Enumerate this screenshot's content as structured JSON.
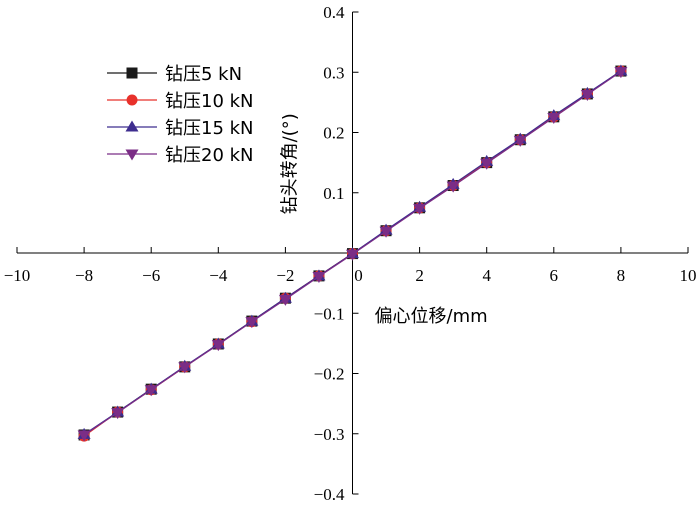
{
  "chart_data": {
    "type": "line",
    "xlabel": "偏心位移/mm",
    "ylabel": "钻头转角/(°)",
    "xlim": [
      -10,
      10
    ],
    "ylim": [
      -0.4,
      0.4
    ],
    "xticks": [
      -10,
      -8,
      -6,
      -4,
      -2,
      0,
      2,
      4,
      6,
      8,
      10
    ],
    "yticks": [
      -0.4,
      -0.3,
      -0.2,
      -0.1,
      0.1,
      0.2,
      0.3,
      0.4
    ],
    "xtick_labels": [
      "−10",
      "−8",
      "−6",
      "−4",
      "−2",
      "0",
      "2",
      "4",
      "6",
      "8",
      "10"
    ],
    "ytick_labels": [
      "−0.4",
      "−0.3",
      "−0.2",
      "−0.1",
      "0.1",
      "0.2",
      "0.3",
      "0.4"
    ],
    "legend_position": "top-left",
    "grid": false,
    "x": [
      -8,
      -7,
      -6,
      -5,
      -4,
      -3,
      -2,
      -1,
      0,
      1,
      2,
      3,
      4,
      5,
      6,
      7,
      8
    ],
    "series": [
      {
        "name": "钻压5 kN",
        "marker": "square",
        "color": "#1a1a1a",
        "values": [
          -0.302,
          -0.264,
          -0.226,
          -0.189,
          -0.151,
          -0.113,
          -0.075,
          -0.038,
          -0.001,
          0.037,
          0.075,
          0.112,
          0.15,
          0.188,
          0.226,
          0.264,
          0.302
        ]
      },
      {
        "name": "钻压10 kN",
        "marker": "circle",
        "color": "#e8312b",
        "values": [
          -0.304,
          -0.264,
          -0.227,
          -0.189,
          -0.151,
          -0.114,
          -0.075,
          -0.038,
          -0.001,
          0.037,
          0.075,
          0.112,
          0.15,
          0.188,
          0.226,
          0.264,
          0.302
        ]
      },
      {
        "name": "钻压15 kN",
        "marker": "triangle-up",
        "color": "#3e2d8f",
        "values": [
          -0.301,
          -0.264,
          -0.226,
          -0.188,
          -0.151,
          -0.113,
          -0.075,
          -0.038,
          -0.001,
          0.038,
          0.076,
          0.114,
          0.152,
          0.189,
          0.228,
          0.265,
          0.302
        ]
      },
      {
        "name": "钻压20 kN",
        "marker": "triangle-down",
        "color": "#7b2d86",
        "values": [
          -0.302,
          -0.265,
          -0.227,
          -0.189,
          -0.152,
          -0.114,
          -0.077,
          -0.039,
          -0.002,
          0.036,
          0.074,
          0.111,
          0.149,
          0.187,
          0.225,
          0.263,
          0.301
        ]
      }
    ]
  }
}
